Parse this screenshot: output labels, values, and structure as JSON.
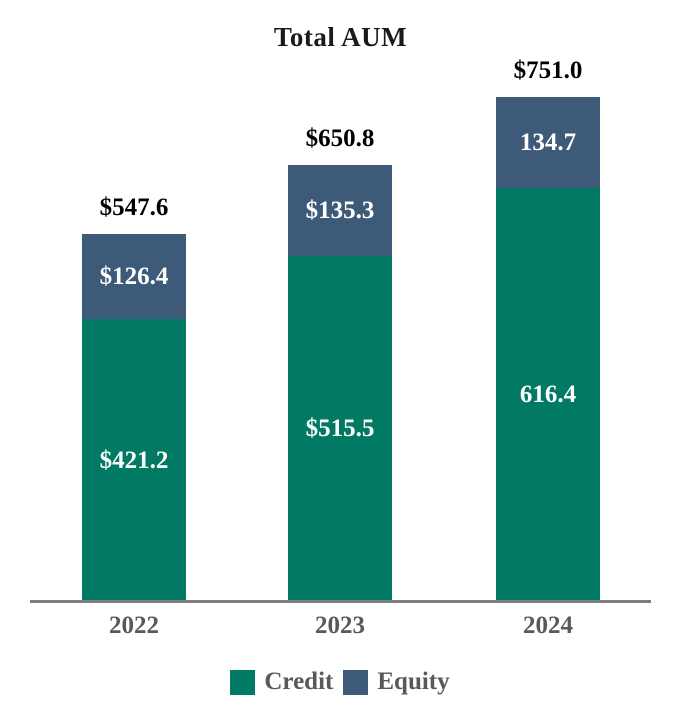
{
  "title": "Total AUM",
  "colors": {
    "credit_green": "#007a62",
    "equity_blue": "#3d5a78",
    "axis_gray": "#7d7d7d",
    "year_label_gray": "#595959",
    "total_label_black": "#000000",
    "inbar_label_white": "#ffffff"
  },
  "legend": {
    "items": [
      {
        "label": "Credit",
        "color_key": "credit_green"
      },
      {
        "label": "Equity",
        "color_key": "equity_blue"
      }
    ]
  },
  "chart_data": {
    "type": "bar",
    "stacked": true,
    "title": "Total AUM",
    "categories": [
      "2022",
      "2023",
      "2024"
    ],
    "series": [
      {
        "name": "Credit",
        "values": [
          421.2,
          515.5,
          616.4
        ],
        "labels": [
          "$421.2",
          "$515.5",
          "616.4"
        ],
        "color_key": "credit_green"
      },
      {
        "name": "Equity",
        "values": [
          126.4,
          135.3,
          134.7
        ],
        "labels": [
          "$126.4",
          "$135.3",
          "134.7"
        ],
        "color_key": "equity_blue"
      }
    ],
    "totals": [
      547.6,
      650.8,
      751.0
    ],
    "total_labels": [
      "$547.6",
      "$650.8",
      "$751.0"
    ],
    "xlabel": "",
    "ylabel": "",
    "ylim": [
      0,
      800
    ],
    "grid": false,
    "legend_position": "bottom"
  }
}
